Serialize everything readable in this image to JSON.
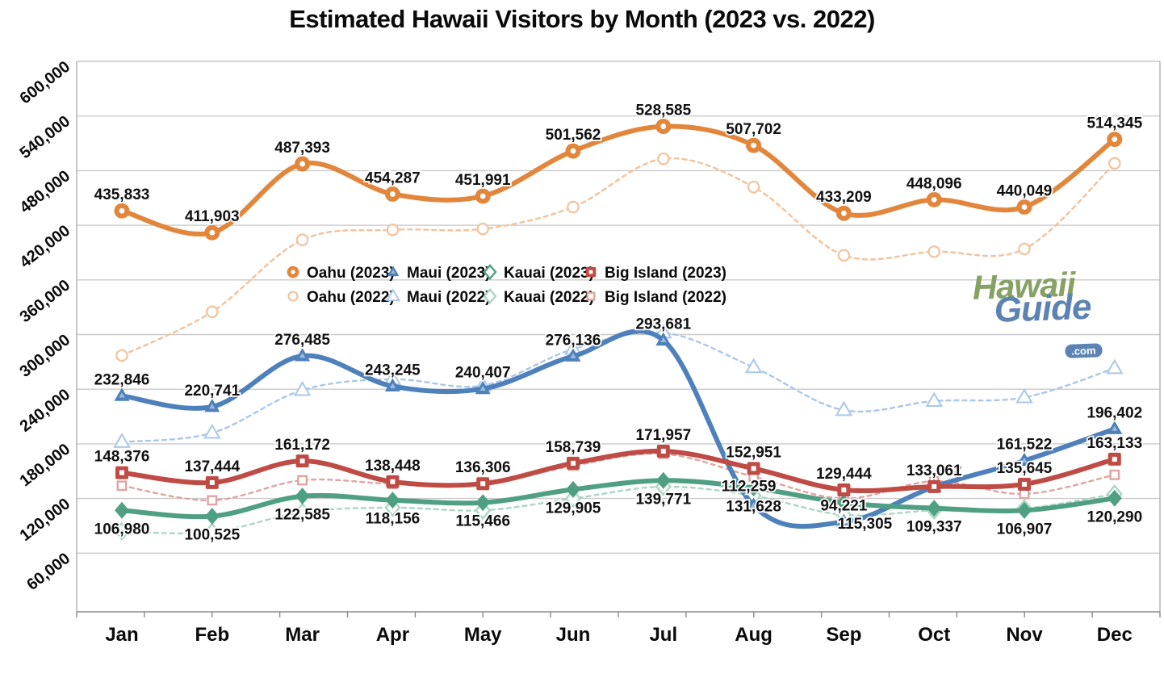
{
  "title": "Estimated Hawaii Visitors by Month (2023 vs. 2022)",
  "logo": {
    "hawaii": "Hawaii",
    "guide": "Guide",
    "com": ".com"
  },
  "colors": {
    "oahu_2023": "#e2863c",
    "maui_2023": "#4e81bc",
    "kauai_2023": "#4fa083",
    "big_island_2023": "#bf4b45",
    "oahu_2022": "#f2c29b",
    "maui_2022": "#a9c7e8",
    "kauai_2022": "#aad7c3",
    "big_island_2022": "#dfa4a3",
    "gridline": "#c9c9c9",
    "axis": "#8a8a8a",
    "label_text": "#111111"
  },
  "chart_data": {
    "type": "line",
    "title": "Estimated Hawaii Visitors by Month (2023 vs. 2022)",
    "categories": [
      "Jan",
      "Feb",
      "Mar",
      "Apr",
      "May",
      "Jun",
      "Jul",
      "Aug",
      "Sep",
      "Oct",
      "Nov",
      "Dec"
    ],
    "y_axis": {
      "min": 60000,
      "max": 600000,
      "step": 60000,
      "tick_labels": [
        "60,000",
        "120,000",
        "180,000",
        "240,000",
        "300,000",
        "360,000",
        "420,000",
        "480,000",
        "540,000",
        "600,000"
      ]
    },
    "grid": true,
    "legend_position": "inside-top-center-two-rows",
    "series": [
      {
        "name": "Oahu (2023)",
        "island": "oahu",
        "year": 2023,
        "style": "solid",
        "marker": "circle",
        "color": "#e2863c",
        "data_labels": true,
        "label_position": "above",
        "values": [
          435833,
          411903,
          487393,
          454287,
          451991,
          501562,
          528585,
          507702,
          433209,
          448096,
          440049,
          514345
        ]
      },
      {
        "name": "Maui (2023)",
        "island": "maui",
        "year": 2023,
        "style": "solid",
        "marker": "triangle",
        "color": "#4e81bc",
        "data_labels": true,
        "label_position": "above",
        "values": [
          232846,
          220741,
          276485,
          243245,
          240407,
          276136,
          293681,
          112259,
          94221,
          132902,
          161522,
          196402
        ]
      },
      {
        "name": "Kauai (2023)",
        "island": "kauai",
        "year": 2023,
        "style": "solid",
        "marker": "diamond",
        "color": "#4fa083",
        "data_labels": true,
        "label_position": "below",
        "values": [
          106980,
          100525,
          122585,
          118156,
          115466,
          129905,
          139771,
          131628,
          115305,
          109337,
          106907,
          120290
        ]
      },
      {
        "name": "Big Island (2023)",
        "island": "big-island",
        "year": 2023,
        "style": "solid",
        "marker": "square",
        "color": "#bf4b45",
        "data_labels": true,
        "label_position": "above",
        "values": [
          148376,
          137444,
          161172,
          138448,
          136306,
          158739,
          171957,
          152951,
          129444,
          133061,
          135645,
          163133
        ]
      },
      {
        "name": "Oahu (2022)",
        "island": "oahu",
        "year": 2022,
        "style": "dashed",
        "marker": "circle",
        "color": "#f2c29b",
        "data_labels": false,
        "label_position": null,
        "values": [
          277000,
          325000,
          404000,
          415000,
          416000,
          440000,
          493000,
          462000,
          387000,
          391000,
          394000,
          488000
        ]
      },
      {
        "name": "Maui (2022)",
        "island": "maui",
        "year": 2022,
        "style": "dashed",
        "marker": "triangle",
        "color": "#a9c7e8",
        "data_labels": false,
        "label_position": null,
        "values": [
          182000,
          192000,
          239000,
          251000,
          244000,
          284000,
          302000,
          264000,
          217000,
          227000,
          231000,
          263000
        ]
      },
      {
        "name": "Kauai (2022)",
        "island": "kauai",
        "year": 2022,
        "style": "dashed",
        "marker": "diamond",
        "color": "#aad7c3",
        "data_labels": false,
        "label_position": null,
        "values": [
          84000,
          83000,
          105000,
          110000,
          107000,
          120000,
          133000,
          123000,
          102000,
          107000,
          109000,
          125000
        ]
      },
      {
        "name": "Big Island (2022)",
        "island": "big-island",
        "year": 2022,
        "style": "dashed",
        "marker": "square",
        "color": "#dfa4a3",
        "data_labels": false,
        "label_position": null,
        "values": [
          134000,
          118000,
          140000,
          136000,
          135000,
          156000,
          169000,
          144000,
          120000,
          139000,
          125000,
          146000
        ]
      }
    ]
  }
}
